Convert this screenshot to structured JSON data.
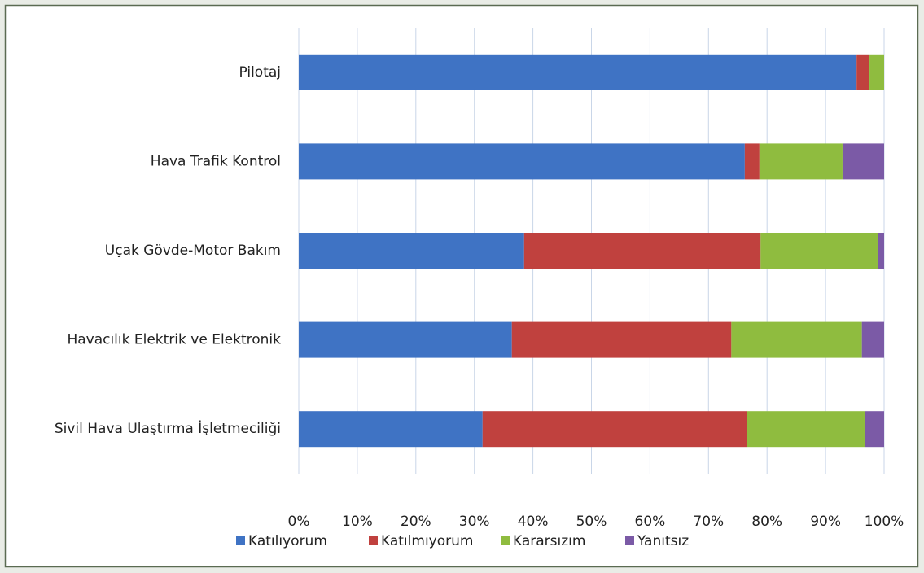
{
  "chart_data": {
    "type": "stacked-barh",
    "categories": [
      "Pilotaj",
      "Hava Trafik Kontrol",
      "Uçak Gövde-Motor Bakım",
      "Havacılık Elektrik ve Elektronik",
      "Sivil Hava Ulaştırma İşletmeciliği"
    ],
    "series": [
      {
        "name": "Katılıyorum",
        "color": "#3f73c4",
        "values": [
          95.3,
          76.2,
          38.5,
          36.4,
          31.4
        ]
      },
      {
        "name": "Katılmıyorum",
        "color": "#c0413e",
        "values": [
          2.2,
          2.5,
          40.4,
          37.5,
          45.1
        ]
      },
      {
        "name": "Kararsızım",
        "color": "#8fbc3f",
        "values": [
          2.5,
          14.2,
          20.1,
          22.3,
          20.2
        ]
      },
      {
        "name": "Yanıtsız",
        "color": "#7b5aa6",
        "values": [
          0,
          7.1,
          1.0,
          3.8,
          3.3
        ]
      }
    ],
    "xlim": [
      0,
      100
    ],
    "xticks": [
      {
        "value": 0,
        "label": "0%"
      },
      {
        "value": 10,
        "label": "10%"
      },
      {
        "value": 20,
        "label": "20%"
      },
      {
        "value": 30,
        "label": "30%"
      },
      {
        "value": 40,
        "label": "40%"
      },
      {
        "value": 50,
        "label": "50%"
      },
      {
        "value": 60,
        "label": "60%"
      },
      {
        "value": 70,
        "label": "70%"
      },
      {
        "value": 80,
        "label": "80%"
      },
      {
        "value": 90,
        "label": "90%"
      },
      {
        "value": 100,
        "label": "100%"
      }
    ],
    "grid": true,
    "legend": "bottom"
  }
}
